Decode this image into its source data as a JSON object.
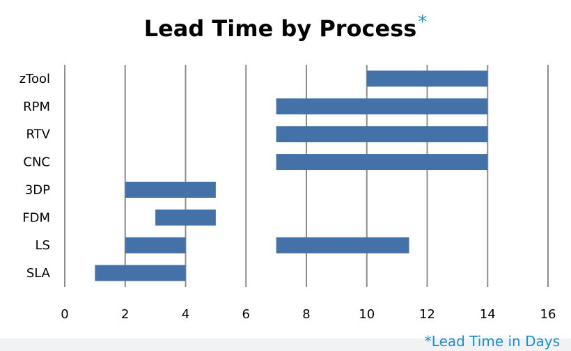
{
  "chart_data": {
    "type": "bar",
    "orientation": "horizontal-range",
    "title": "Lead Time by Process",
    "title_suffix": "*",
    "categories": [
      "SLA",
      "LS",
      "FDM",
      "3DP",
      "CNC",
      "RTV",
      "RPM",
      "zTool"
    ],
    "series": [
      {
        "ranges": [
          [
            [
              1,
              4
            ]
          ],
          [
            [
              2,
              4
            ],
            [
              7,
              11.4
            ]
          ],
          [
            [
              3,
              5
            ]
          ],
          [
            [
              2,
              5
            ]
          ],
          [
            [
              7,
              14
            ]
          ],
          [
            [
              7,
              14
            ]
          ],
          [
            [
              7,
              14
            ]
          ],
          [
            [
              10,
              14
            ]
          ]
        ]
      }
    ],
    "xlim": [
      0,
      16
    ],
    "xticks": [
      "0",
      "2",
      "4",
      "6",
      "8",
      "10",
      "12",
      "14",
      "16"
    ],
    "grid": true,
    "bar_color": "#4472a8",
    "grid_color": "#8c8c8c",
    "footnote": "*Lead Time in Days",
    "footnote_color": "#1b8fd0"
  }
}
